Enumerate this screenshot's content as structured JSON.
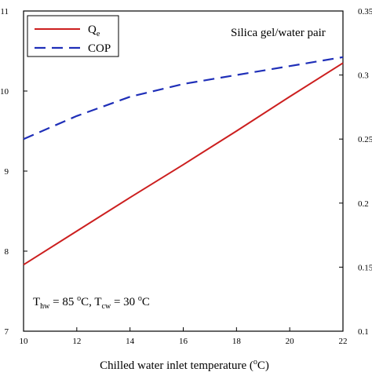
{
  "chart_data": {
    "type": "line",
    "xlabel": {
      "main": "Chilled water inlet temperature (",
      "sup": "o",
      "tail": "C)"
    },
    "x_ticks": [
      10,
      12,
      14,
      16,
      18,
      20,
      22
    ],
    "xlim": [
      10,
      22
    ],
    "y_left_ticks": [
      7,
      8,
      9,
      10,
      11
    ],
    "y_left_lim": [
      7,
      11
    ],
    "y_right_ticks": [
      0.1,
      0.15,
      0.2,
      0.25,
      0.3,
      0.35
    ],
    "y_right_lim": [
      0.1,
      0.35
    ],
    "series": [
      {
        "name": "Qe",
        "name_main": "Q",
        "name_sub": "e",
        "axis": "left",
        "color": "#cc1f1f",
        "dash": "solid",
        "x": [
          10,
          12,
          14,
          16,
          18,
          20,
          22
        ],
        "y": [
          7.83,
          8.25,
          8.67,
          9.08,
          9.5,
          9.93,
          10.35
        ]
      },
      {
        "name": "COP",
        "axis": "right",
        "color": "#1f2fb8",
        "dash": "dashed",
        "x": [
          10,
          12,
          14,
          16,
          18,
          20,
          22
        ],
        "y": [
          0.25,
          0.268,
          0.283,
          0.293,
          0.3,
          0.307,
          0.314
        ]
      }
    ],
    "annotation_pair": "Silica gel/water pair",
    "annotation_conditions": {
      "t1": "T",
      "t1_sub": "hw",
      "t1_eq": " = 85 ",
      "t1_sup": "o",
      "t1_unit": "C, ",
      "t2": "T",
      "t2_sub": "cw",
      "t2_eq": " = 30 ",
      "t2_sup": "o",
      "t2_unit": "C"
    },
    "grid": false,
    "legend_position": "top-left"
  }
}
